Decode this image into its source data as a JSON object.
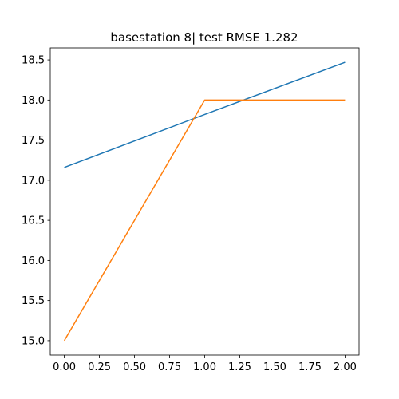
{
  "chart_data": {
    "type": "line",
    "title": "basestation 8| test RMSE 1.282",
    "xlabel": "",
    "ylabel": "",
    "xlim": [
      -0.1,
      2.1
    ],
    "ylim": [
      14.82,
      18.65
    ],
    "x_ticks": [
      0.0,
      0.25,
      0.5,
      0.75,
      1.0,
      1.25,
      1.5,
      1.75,
      2.0
    ],
    "x_tick_labels": [
      "0.00",
      "0.25",
      "0.50",
      "0.75",
      "1.00",
      "1.25",
      "1.50",
      "1.75",
      "2.00"
    ],
    "y_ticks": [
      15.0,
      15.5,
      16.0,
      16.5,
      17.0,
      17.5,
      18.0,
      18.5
    ],
    "y_tick_labels": [
      "15.0",
      "15.5",
      "16.0",
      "16.5",
      "17.0",
      "17.5",
      "18.0",
      "18.5"
    ],
    "grid": false,
    "series": [
      {
        "color": "#1f77b4",
        "x": [
          0,
          1,
          2
        ],
        "y": [
          17.16,
          17.82,
          18.47
        ]
      },
      {
        "color": "#ff7f0e",
        "x": [
          0,
          1,
          2
        ],
        "y": [
          15.0,
          18.0,
          18.0
        ]
      }
    ]
  }
}
